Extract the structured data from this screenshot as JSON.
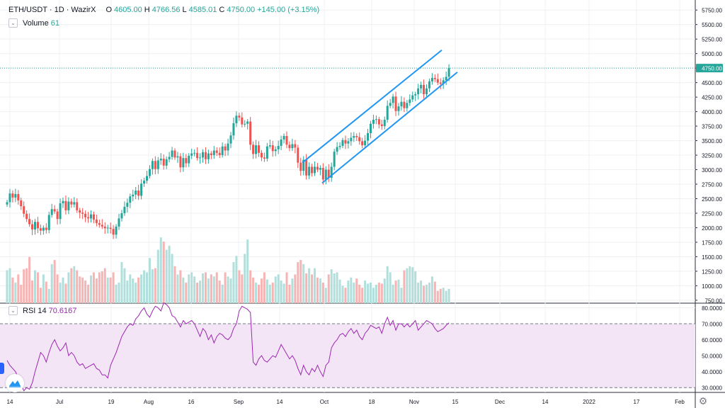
{
  "header": {
    "symbol": "ETH/USDT · 1D · WazirX",
    "open_key": "O",
    "open": "4605.00",
    "high_key": "H",
    "high": "4766.56",
    "low_key": "L",
    "low": "4585.01",
    "close_key": "C",
    "close": "4750.00",
    "change": "+145.00 (+3.15%)"
  },
  "volume_legend": {
    "label": "Volume",
    "value": "61"
  },
  "rsi_legend": {
    "label": "RSI 14",
    "value": "70.6167"
  },
  "colors": {
    "up": "#26a69a",
    "down": "#ef5350",
    "vol_up": "#b2dfdb",
    "vol_down": "#f7b4b4",
    "channel": "#2196f3",
    "rsi_line": "#9c27b0",
    "rsi_band": "#f3e5f5",
    "last_price": "#26a69a"
  },
  "last_price_label": "4750.00",
  "chart_data": [
    {
      "type": "candlestick",
      "title": "ETH/USDT · 1D · WazirX",
      "price_axis_ticks": [
        "750.00",
        "1000.00",
        "1250.00",
        "1500.00",
        "1750.00",
        "2000.00",
        "2250.00",
        "2500.00",
        "2750.00",
        "3000.00",
        "3250.00",
        "3500.00",
        "3750.00",
        "4000.00",
        "4250.00",
        "4500.00",
        "4750.00",
        "5000.00",
        "5250.00",
        "5500.00",
        "5750.00"
      ],
      "time_axis_ticks": [
        "14",
        "Jul",
        "19",
        "Aug",
        "16",
        "Sep",
        "14",
        "Oct",
        "18",
        "Nov",
        "15",
        "Dec",
        "14",
        "2022",
        "17",
        "Feb"
      ],
      "ylim": [
        700,
        5850
      ],
      "last_price": 4750,
      "grid": true,
      "channel_lines": [
        {
          "from": [
            "2021-09-21",
            3120
          ],
          "to": [
            "2021-11-12",
            5060
          ]
        },
        {
          "from": [
            "2021-09-21",
            2770
          ],
          "to": [
            "2021-11-13",
            4680
          ]
        }
      ],
      "closes": [
        2440,
        2590,
        2520,
        2580,
        2470,
        2370,
        2240,
        2150,
        2060,
        1970,
        2100,
        1990,
        1950,
        2000,
        1960,
        2220,
        2320,
        2280,
        2150,
        2420,
        2460,
        2300,
        2450,
        2400,
        2440,
        2300,
        2260,
        2240,
        2180,
        2160,
        2230,
        2140,
        2080,
        2050,
        2020,
        1990,
        2000,
        1980,
        1880,
        2020,
        2160,
        2250,
        2360,
        2430,
        2540,
        2570,
        2640,
        2550,
        2760,
        2810,
        2890,
        3010,
        3150,
        3010,
        3160,
        3190,
        3070,
        3180,
        3220,
        3330,
        3210,
        3230,
        3040,
        3200,
        3110,
        3240,
        3280,
        3290,
        3200,
        3210,
        3300,
        3180,
        3280,
        3250,
        3330,
        3290,
        3250,
        3400,
        3330,
        3450,
        3590,
        3800,
        3930,
        3900,
        3780,
        3790,
        3830,
        3430,
        3270,
        3420,
        3290,
        3210,
        3190,
        3400,
        3420,
        3320,
        3350,
        3410,
        3520,
        3580,
        3430,
        3370,
        3440,
        3380,
        3120,
        2980,
        3170,
        2900,
        3050,
        2940,
        3050,
        3000,
        3030,
        2830,
        3000,
        2860,
        3050,
        3310,
        3390,
        3410,
        3510,
        3450,
        3490,
        3550,
        3580,
        3560,
        3490,
        3420,
        3500,
        3630,
        3790,
        3860,
        3870,
        3780,
        3750,
        3860,
        4100,
        4150,
        4260,
        4010,
        4090,
        4170,
        4060,
        4150,
        4210,
        4280,
        4300,
        4400,
        4460,
        4300,
        4400,
        4520,
        4580,
        4560,
        4500,
        4480,
        4540,
        4600,
        4750
      ],
      "volume_scale_hidden": true,
      "volumes": [
        32,
        34,
        25,
        20,
        28,
        18,
        33,
        34,
        45,
        22,
        32,
        30,
        15,
        28,
        21,
        14,
        38,
        42,
        28,
        20,
        25,
        19,
        30,
        34,
        36,
        32,
        26,
        25,
        22,
        18,
        27,
        30,
        24,
        30,
        31,
        34,
        25,
        25,
        30,
        18,
        20,
        40,
        34,
        22,
        28,
        24,
        20,
        25,
        28,
        32,
        30,
        44,
        33,
        34,
        52,
        64,
        60,
        52,
        56,
        48,
        36,
        28,
        32,
        25,
        20,
        28,
        30,
        26,
        20,
        22,
        29,
        30,
        24,
        28,
        26,
        30,
        22,
        18,
        30,
        26,
        24,
        40,
        46,
        32,
        28,
        48,
        62,
        32,
        25,
        20,
        18,
        24,
        30,
        23,
        18,
        20,
        26,
        28,
        22,
        19,
        30,
        18,
        24,
        28,
        40,
        42,
        38,
        29,
        34,
        28,
        34,
        25,
        24,
        20,
        15,
        28,
        33,
        29,
        30,
        23,
        17,
        15,
        22,
        25,
        20,
        24,
        18,
        15,
        22,
        19,
        20,
        15,
        18,
        20,
        19,
        24,
        36,
        30,
        18,
        22,
        23,
        15,
        32,
        34,
        36,
        35,
        31,
        20,
        22,
        17,
        18,
        20,
        26,
        21,
        12,
        14,
        15,
        12,
        14
      ]
    },
    {
      "type": "line",
      "title": "RSI 14",
      "axis_ticks": [
        "30.0000",
        "40.0000",
        "50.0000",
        "60.0000",
        "70.0000",
        "80.0000"
      ],
      "ylim": [
        27,
        82
      ],
      "bands": [
        30,
        70
      ],
      "values": [
        47,
        44,
        42,
        40,
        36,
        32,
        28,
        30,
        29,
        33,
        40,
        46,
        52,
        50,
        46,
        52,
        57,
        60,
        56,
        53,
        55,
        58,
        50,
        52,
        50,
        46,
        44,
        45,
        42,
        43,
        44,
        45,
        42,
        41,
        38,
        38,
        36,
        44,
        48,
        52,
        57,
        62,
        65,
        68,
        70,
        69,
        73,
        75,
        78,
        80,
        76,
        74,
        78,
        81,
        80,
        78,
        83,
        82,
        80,
        75,
        74,
        71,
        68,
        72,
        70,
        71,
        72,
        70,
        66,
        62,
        67,
        65,
        60,
        63,
        58,
        62,
        64,
        63,
        61,
        60,
        62,
        67,
        70,
        78,
        81,
        80,
        79,
        77,
        46,
        44,
        48,
        50,
        47,
        46,
        48,
        50,
        49,
        53,
        57,
        54,
        51,
        48,
        50,
        47,
        42,
        38,
        44,
        40,
        38,
        42,
        40,
        44,
        40,
        37,
        44,
        46,
        55,
        58,
        60,
        63,
        64,
        62,
        65,
        67,
        64,
        66,
        62,
        60,
        64,
        66,
        69,
        68,
        67,
        68,
        64,
        70,
        74,
        69,
        72,
        66,
        70,
        70,
        68,
        70,
        68,
        70,
        72,
        66,
        68,
        70,
        72,
        71,
        70,
        67,
        65,
        66,
        67,
        69,
        70.6
      ]
    }
  ]
}
